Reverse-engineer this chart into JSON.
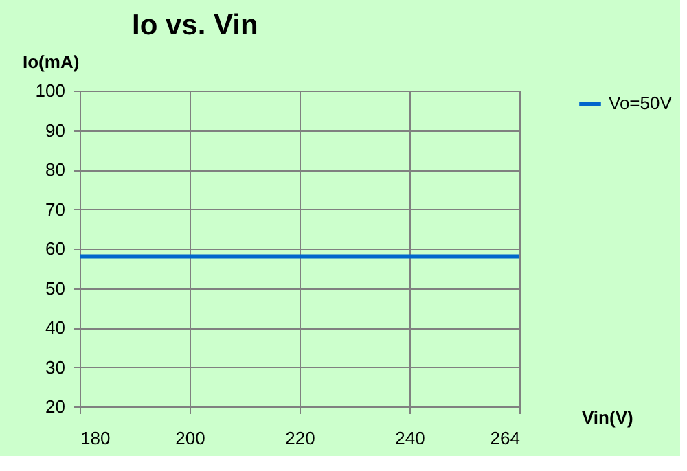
{
  "chart_data": {
    "type": "line",
    "title": "Io vs. Vin",
    "xlabel": "Vin(V)",
    "ylabel": "Io(mA)",
    "categories": [
      "180",
      "200",
      "220",
      "240",
      "264"
    ],
    "series": [
      {
        "name": "Vo=50V",
        "color": "#0066cc",
        "values": [
          58,
          58,
          58,
          58,
          58
        ]
      }
    ],
    "ylim": [
      20,
      100
    ],
    "yticks": [
      20,
      30,
      40,
      50,
      60,
      70,
      80,
      90,
      100
    ],
    "grid": true,
    "legend": "right",
    "marker": "none",
    "line_style": "solid"
  }
}
